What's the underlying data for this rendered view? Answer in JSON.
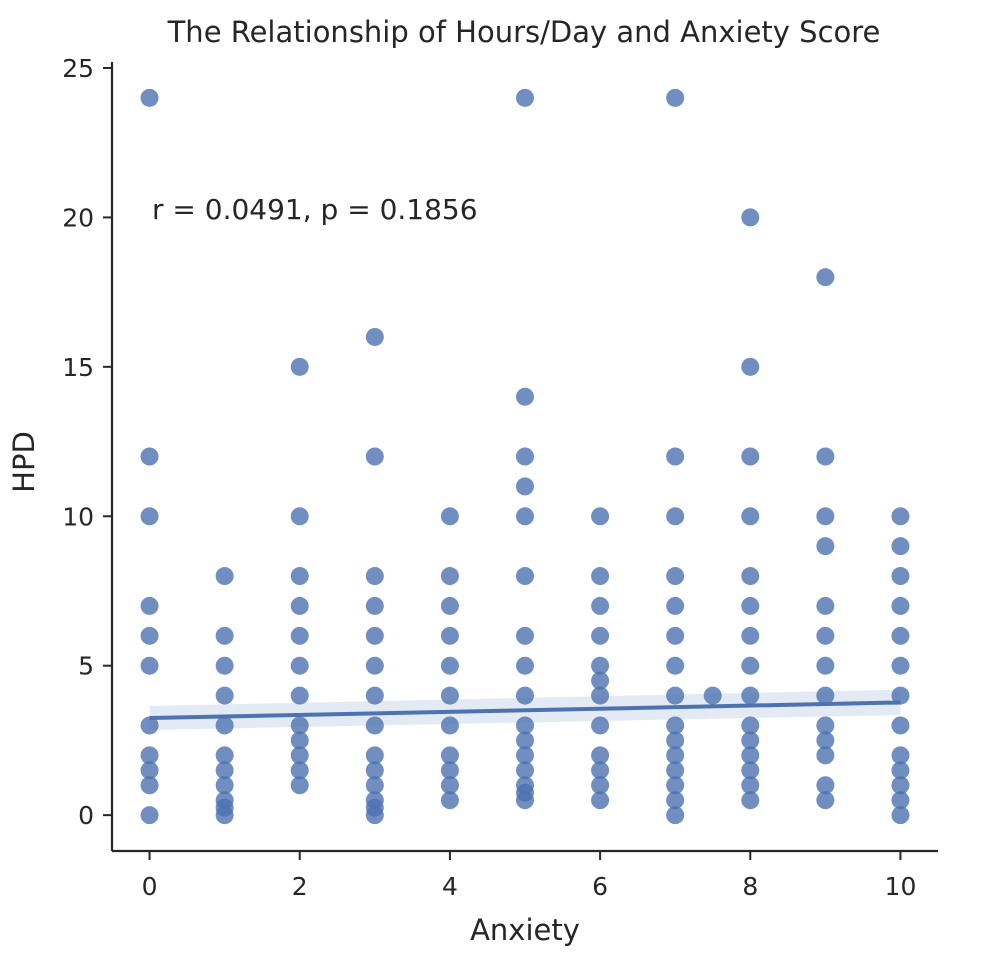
{
  "chart_data": {
    "type": "scatter",
    "title": "The Relationship of Hours/Day and Anxiety Score",
    "xlabel": "Anxiety",
    "ylabel": "HPD",
    "xlim": [
      -0.5,
      10.5
    ],
    "ylim": [
      -1.2,
      25.2
    ],
    "xticks": [
      0,
      2,
      4,
      6,
      8,
      10
    ],
    "yticks": [
      0,
      5,
      10,
      15,
      20,
      25
    ],
    "grid": false,
    "annotation": "r = 0.0491, p = 0.1856",
    "color": "#4C72B0",
    "regression": {
      "x": [
        0,
        10
      ],
      "y": [
        3.25,
        3.77
      ],
      "ci_lower": [
        2.85,
        3.35
      ],
      "ci_upper": [
        3.65,
        4.2
      ]
    },
    "points": [
      [
        0,
        24
      ],
      [
        0,
        12
      ],
      [
        0,
        10
      ],
      [
        0,
        7
      ],
      [
        0,
        6
      ],
      [
        0,
        5
      ],
      [
        0,
        3
      ],
      [
        0,
        2
      ],
      [
        0,
        1.5
      ],
      [
        0,
        1
      ],
      [
        0,
        0
      ],
      [
        1,
        8
      ],
      [
        1,
        6
      ],
      [
        1,
        5
      ],
      [
        1,
        4
      ],
      [
        1,
        3
      ],
      [
        1,
        2
      ],
      [
        1,
        1.5
      ],
      [
        1,
        1
      ],
      [
        1,
        0.5
      ],
      [
        1,
        0.25
      ],
      [
        1,
        0
      ],
      [
        2,
        15
      ],
      [
        2,
        10
      ],
      [
        2,
        8
      ],
      [
        2,
        7
      ],
      [
        2,
        6
      ],
      [
        2,
        5
      ],
      [
        2,
        4
      ],
      [
        2,
        3
      ],
      [
        2,
        2.5
      ],
      [
        2,
        2
      ],
      [
        2,
        1.5
      ],
      [
        2,
        1
      ],
      [
        3,
        16
      ],
      [
        3,
        12
      ],
      [
        3,
        8
      ],
      [
        3,
        7
      ],
      [
        3,
        6
      ],
      [
        3,
        5
      ],
      [
        3,
        4
      ],
      [
        3,
        3
      ],
      [
        3,
        2
      ],
      [
        3,
        1.5
      ],
      [
        3,
        1
      ],
      [
        3,
        0.5
      ],
      [
        3,
        0.25
      ],
      [
        3,
        0
      ],
      [
        4,
        10
      ],
      [
        4,
        8
      ],
      [
        4,
        7
      ],
      [
        4,
        6
      ],
      [
        4,
        5
      ],
      [
        4,
        4
      ],
      [
        4,
        3
      ],
      [
        4,
        2
      ],
      [
        4,
        1.5
      ],
      [
        4,
        1
      ],
      [
        4,
        0.5
      ],
      [
        5,
        24
      ],
      [
        5,
        14
      ],
      [
        5,
        12
      ],
      [
        5,
        11
      ],
      [
        5,
        10
      ],
      [
        5,
        8
      ],
      [
        5,
        6
      ],
      [
        5,
        5
      ],
      [
        5,
        4
      ],
      [
        5,
        3
      ],
      [
        5,
        2.5
      ],
      [
        5,
        2
      ],
      [
        5,
        1.5
      ],
      [
        5,
        1
      ],
      [
        5,
        0.75
      ],
      [
        5,
        0.5
      ],
      [
        6,
        10
      ],
      [
        6,
        8
      ],
      [
        6,
        7
      ],
      [
        6,
        6
      ],
      [
        6,
        5
      ],
      [
        6,
        4.5
      ],
      [
        6,
        4
      ],
      [
        6,
        3
      ],
      [
        6,
        2
      ],
      [
        6,
        1.5
      ],
      [
        6,
        1
      ],
      [
        6,
        0.5
      ],
      [
        7,
        24
      ],
      [
        7,
        12
      ],
      [
        7,
        10
      ],
      [
        7,
        8
      ],
      [
        7,
        7
      ],
      [
        7,
        6
      ],
      [
        7,
        5
      ],
      [
        7,
        4
      ],
      [
        7,
        3
      ],
      [
        7,
        2.5
      ],
      [
        7,
        2
      ],
      [
        7,
        1.5
      ],
      [
        7,
        1
      ],
      [
        7,
        0.5
      ],
      [
        7,
        0
      ],
      [
        7.5,
        4
      ],
      [
        8,
        20
      ],
      [
        8,
        15
      ],
      [
        8,
        12
      ],
      [
        8,
        10
      ],
      [
        8,
        8
      ],
      [
        8,
        7
      ],
      [
        8,
        6
      ],
      [
        8,
        5
      ],
      [
        8,
        4
      ],
      [
        8,
        3
      ],
      [
        8,
        2.5
      ],
      [
        8,
        2
      ],
      [
        8,
        1.5
      ],
      [
        8,
        1
      ],
      [
        8,
        0.5
      ],
      [
        9,
        18
      ],
      [
        9,
        12
      ],
      [
        9,
        10
      ],
      [
        9,
        9
      ],
      [
        9,
        7
      ],
      [
        9,
        6
      ],
      [
        9,
        5
      ],
      [
        9,
        4
      ],
      [
        9,
        3
      ],
      [
        9,
        2.5
      ],
      [
        9,
        2
      ],
      [
        9,
        1
      ],
      [
        9,
        0.5
      ],
      [
        10,
        10
      ],
      [
        10,
        9
      ],
      [
        10,
        8
      ],
      [
        10,
        7
      ],
      [
        10,
        6
      ],
      [
        10,
        5
      ],
      [
        10,
        4
      ],
      [
        10,
        3
      ],
      [
        10,
        2
      ],
      [
        10,
        1.5
      ],
      [
        10,
        1
      ],
      [
        10,
        0.5
      ],
      [
        10,
        0
      ]
    ]
  }
}
